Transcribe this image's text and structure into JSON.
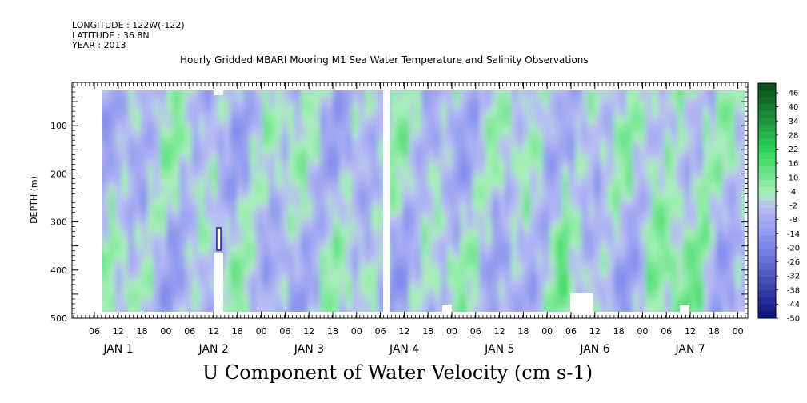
{
  "header": {
    "longitude": "LONGITUDE : 122W(-122)",
    "latitude": "LATITUDE : 36.8N",
    "year": "YEAR : 2013"
  },
  "chart_data": {
    "type": "heatmap",
    "title": "Hourly Gridded MBARI Mooring M1 Sea Water Temperature and Salinity Observations",
    "footer_label": "U Component of Water Velocity (cm s-1)",
    "ylabel": "DEPTH (m)",
    "yticks": [
      100,
      200,
      300,
      400,
      500
    ],
    "ylim": [
      500,
      10
    ],
    "x_hour_ticks": [
      "06",
      "12",
      "18",
      "00",
      "06",
      "12",
      "18",
      "00",
      "06",
      "12",
      "18",
      "00",
      "06",
      "12",
      "18",
      "00",
      "06",
      "12",
      "18",
      "00",
      "06",
      "12",
      "18",
      "00",
      "06",
      "12",
      "18",
      "00"
    ],
    "x_day_labels": [
      "JAN 1",
      "JAN 2",
      "JAN 3",
      "JAN 4",
      "JAN 5",
      "JAN 6",
      "JAN 7"
    ],
    "colorbar_labels": [
      "46",
      "40",
      "34",
      "28",
      "22",
      "16",
      "10",
      "4",
      "-2",
      "-8",
      "-14",
      "-20",
      "-26",
      "-32",
      "-38",
      "-44",
      "-50"
    ],
    "colorbar_range": [
      -50,
      52
    ],
    "colors": {
      "strong_positive": "#0a4a1a",
      "positive": "#2fd85a",
      "weak_positive": "#a8f0b8",
      "weak_negative": "#b8bcf4",
      "negative": "#7a84ec",
      "strong_negative": "#0a0f7a"
    }
  }
}
